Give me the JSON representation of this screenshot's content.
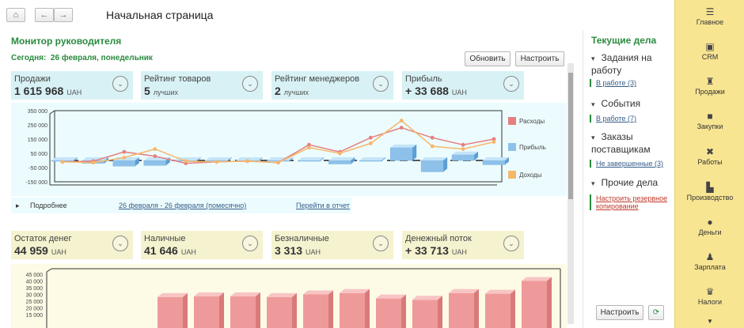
{
  "header": {
    "home_icon": "home-icon",
    "back_icon": "arrow-left-icon",
    "forward_icon": "arrow-right-icon",
    "title": "Начальная страница"
  },
  "monitor": {
    "title": "Монитор руководителя",
    "today_label": "Сегодня:",
    "today_value": "26 февраля, понедельник",
    "refresh_label": "Обновить",
    "configure_label": "Настроить"
  },
  "kpi_top": [
    {
      "label": "Продажи",
      "value": "1 615 968",
      "unit": "UAH"
    },
    {
      "label": "Рейтинг товаров",
      "value": "5",
      "unit": "лучших"
    },
    {
      "label": "Рейтинг менеджеров",
      "value": "2",
      "unit": "лучших"
    },
    {
      "label": "Прибыль",
      "value": "+ 33 688",
      "unit": "UAH"
    }
  ],
  "details": {
    "more": "Подробнее",
    "period": "26 февраля - 26 февраля (помесячно)",
    "go_report": "Перейти в отчет"
  },
  "kpi_bottom": [
    {
      "label": "Остаток денег",
      "value": "44 959",
      "unit": "UAH"
    },
    {
      "label": "Наличные",
      "value": "41 646",
      "unit": "UAH"
    },
    {
      "label": "Безналичные",
      "value": "3 313",
      "unit": "UAH"
    },
    {
      "label": "Денежный поток",
      "value": "+ 33 713",
      "unit": "UAH"
    }
  ],
  "chart_data": [
    {
      "type": "bar",
      "yticks": [
        "350 000",
        "250 000",
        "150 000",
        "50 000",
        "-50 000",
        "-150 000"
      ],
      "ylim": [
        -150000,
        350000
      ],
      "series": [
        {
          "name": "Расходы",
          "color": "#e57f7f",
          "kind": "line",
          "values": [
            -10000,
            -5000,
            60000,
            30000,
            -20000,
            -10000,
            -5000,
            -15000,
            110000,
            60000,
            160000,
            230000,
            160000,
            110000,
            150000
          ]
        },
        {
          "name": "Прибыль",
          "color": "#8ec1ea",
          "kind": "bar",
          "values": [
            0,
            -20000,
            -40000,
            -35000,
            -5000,
            0,
            0,
            -5000,
            0,
            -25000,
            0,
            90000,
            -80000,
            40000,
            -30000
          ]
        },
        {
          "name": "Доходы",
          "color": "#f6b76b",
          "kind": "line",
          "values": [
            -10000,
            -15000,
            20000,
            80000,
            -5000,
            -10000,
            -5000,
            -15000,
            90000,
            50000,
            120000,
            280000,
            100000,
            80000,
            130000
          ]
        }
      ],
      "legend": "right"
    },
    {
      "type": "bar",
      "yticks": [
        "45 000",
        "40 000",
        "35 000",
        "30 000",
        "25 000",
        "20 000",
        "15 000"
      ],
      "ylim": [
        15000,
        45000
      ],
      "series": [
        {
          "name": "",
          "color": "#ef9a9a",
          "values": [
            28000,
            28500,
            28500,
            28000,
            30000,
            31000,
            27000,
            26000,
            31000,
            30500,
            40000
          ]
        }
      ]
    }
  ],
  "tasks": {
    "title": "Текущие дела",
    "groups": [
      {
        "title": "Задания на работу",
        "link": "В работе (3)"
      },
      {
        "title": "События",
        "link": "В работе (7)"
      },
      {
        "title": "Заказы поставщикам",
        "link": "Не завершенные (3)"
      },
      {
        "title": "Прочие дела",
        "link": "Настроить резервное копирование"
      }
    ],
    "configure_label": "Настроить"
  },
  "sidebar": [
    {
      "label": "Главное",
      "icon": "menu-icon"
    },
    {
      "label": "CRM",
      "icon": "crm-icon"
    },
    {
      "label": "Продажи",
      "icon": "basket-icon"
    },
    {
      "label": "Закупки",
      "icon": "truck-icon"
    },
    {
      "label": "Работы",
      "icon": "tools-icon"
    },
    {
      "label": "Производство",
      "icon": "factory-icon"
    },
    {
      "label": "Деньги",
      "icon": "money-icon"
    },
    {
      "label": "Зарплата",
      "icon": "people-icon"
    },
    {
      "label": "Налоги",
      "icon": "tax-icon"
    }
  ]
}
